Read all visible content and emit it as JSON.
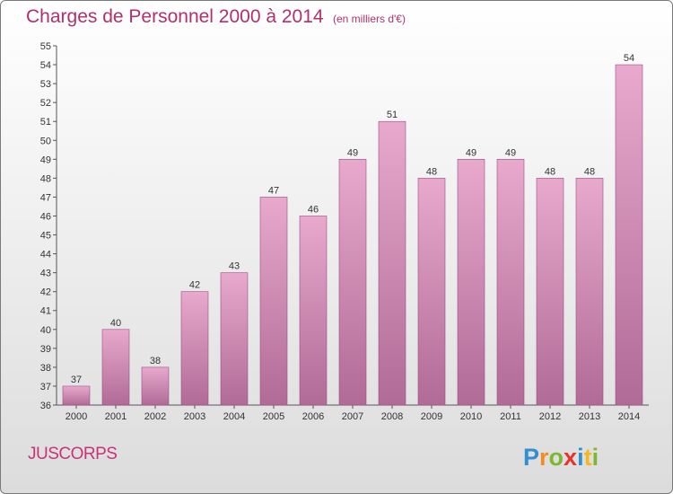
{
  "title": "Charges de Personnel 2000 à 2014",
  "subtitle": "(en milliers d'€)",
  "commune": "JUSCORPS",
  "logo_text": "Proxiti",
  "colors": {
    "title": "#b0306e",
    "bar_top": "#e8a9cd",
    "bar_bottom": "#b06b96",
    "bar_edge": "#9b4f80"
  },
  "chart_data": {
    "type": "bar",
    "categories": [
      "2000",
      "2001",
      "2002",
      "2003",
      "2004",
      "2005",
      "2006",
      "2007",
      "2008",
      "2009",
      "2010",
      "2011",
      "2012",
      "2013",
      "2014"
    ],
    "values": [
      37,
      40,
      38,
      42,
      43,
      47,
      46,
      49,
      51,
      48,
      49,
      49,
      48,
      48,
      54
    ],
    "ylim": [
      36,
      55
    ],
    "yticks": [
      36,
      37,
      38,
      39,
      40,
      41,
      42,
      43,
      44,
      45,
      46,
      47,
      48,
      49,
      50,
      51,
      52,
      53,
      54,
      55
    ],
    "grid": false
  }
}
